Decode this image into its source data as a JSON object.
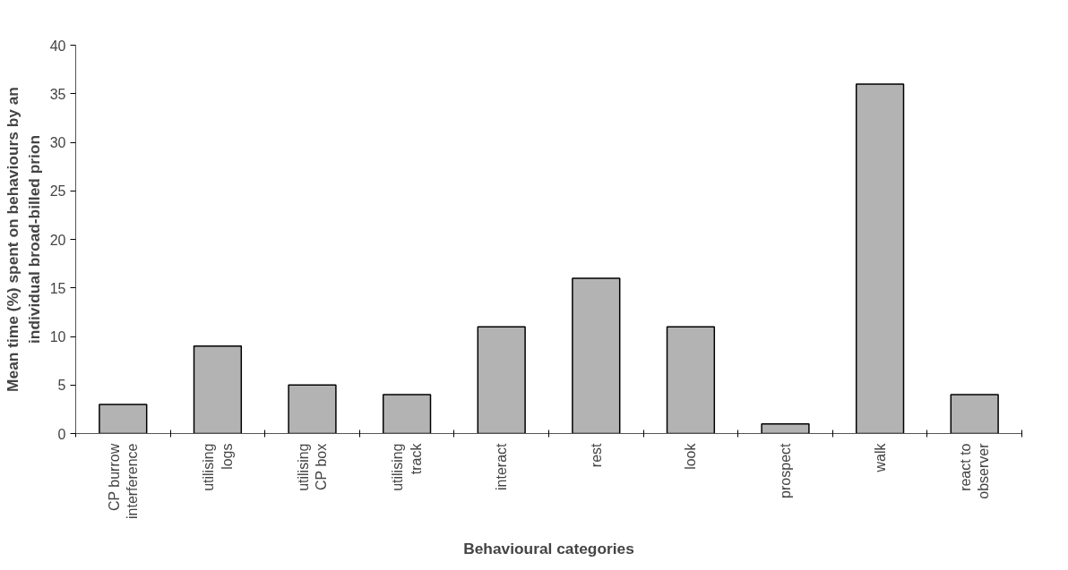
{
  "chart_data": {
    "type": "bar",
    "xlabel": "Behavioural categories",
    "ylabel": "Mean time (%) spent on behaviours by an individual broad-billed prion",
    "categories": [
      "CP burrow interference",
      "utilising logs",
      "utilising CP box",
      "utilising track",
      "interact",
      "rest",
      "look",
      "prospect",
      "walk",
      "react to observer"
    ],
    "values": [
      3,
      9,
      5,
      4,
      11,
      16,
      11,
      1,
      36,
      4
    ],
    "color": "#b3b3b3",
    "ylim": [
      0,
      40
    ],
    "yticks": [
      0,
      5,
      10,
      15,
      20,
      25,
      30,
      35,
      40
    ],
    "grid": false
  }
}
